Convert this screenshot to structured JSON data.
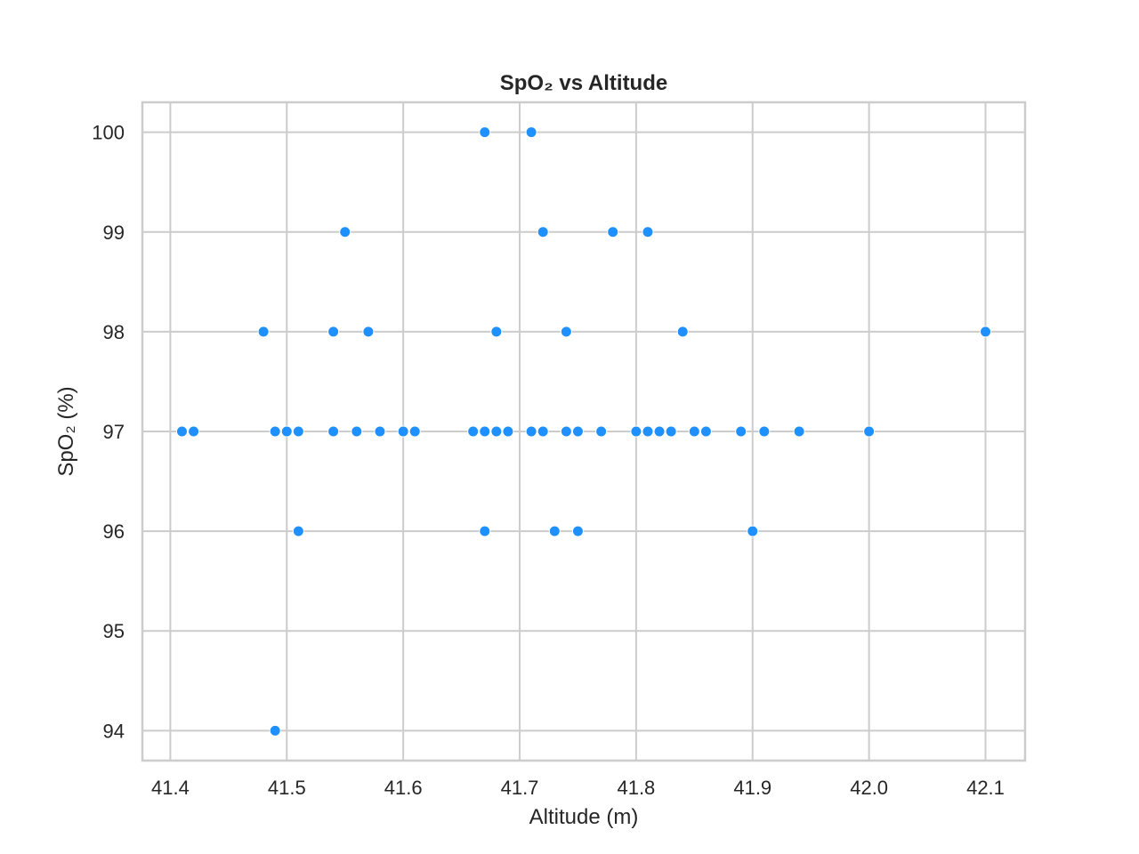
{
  "chart_data": {
    "type": "scatter",
    "title": "SpO₂ vs Altitude",
    "xlabel": "Altitude (m)",
    "ylabel": "SpO₂ (%)",
    "xlim": [
      41.376,
      42.134
    ],
    "ylim": [
      93.7,
      100.3
    ],
    "xticks": [
      41.4,
      41.5,
      41.6,
      41.7,
      41.8,
      41.9,
      42.0,
      42.1
    ],
    "xtick_labels": [
      "41.4",
      "41.5",
      "41.6",
      "41.7",
      "41.8",
      "41.9",
      "42.0",
      "42.1"
    ],
    "yticks": [
      94,
      95,
      96,
      97,
      98,
      99,
      100
    ],
    "ytick_labels": [
      "94",
      "95",
      "96",
      "97",
      "98",
      "99",
      "100"
    ],
    "grid": true,
    "marker_color": "#1e90ff",
    "points": [
      {
        "x": 41.67,
        "y": 100
      },
      {
        "x": 41.71,
        "y": 100
      },
      {
        "x": 41.55,
        "y": 99
      },
      {
        "x": 41.72,
        "y": 99
      },
      {
        "x": 41.78,
        "y": 99
      },
      {
        "x": 41.81,
        "y": 99
      },
      {
        "x": 41.48,
        "y": 98
      },
      {
        "x": 41.54,
        "y": 98
      },
      {
        "x": 41.57,
        "y": 98
      },
      {
        "x": 41.68,
        "y": 98
      },
      {
        "x": 41.74,
        "y": 98
      },
      {
        "x": 41.84,
        "y": 98
      },
      {
        "x": 42.1,
        "y": 98
      },
      {
        "x": 41.41,
        "y": 97
      },
      {
        "x": 41.42,
        "y": 97
      },
      {
        "x": 41.49,
        "y": 97
      },
      {
        "x": 41.5,
        "y": 97
      },
      {
        "x": 41.51,
        "y": 97
      },
      {
        "x": 41.54,
        "y": 97
      },
      {
        "x": 41.56,
        "y": 97
      },
      {
        "x": 41.58,
        "y": 97
      },
      {
        "x": 41.6,
        "y": 97
      },
      {
        "x": 41.61,
        "y": 97
      },
      {
        "x": 41.66,
        "y": 97
      },
      {
        "x": 41.67,
        "y": 97
      },
      {
        "x": 41.68,
        "y": 97
      },
      {
        "x": 41.69,
        "y": 97
      },
      {
        "x": 41.71,
        "y": 97
      },
      {
        "x": 41.72,
        "y": 97
      },
      {
        "x": 41.74,
        "y": 97
      },
      {
        "x": 41.75,
        "y": 97
      },
      {
        "x": 41.77,
        "y": 97
      },
      {
        "x": 41.8,
        "y": 97
      },
      {
        "x": 41.81,
        "y": 97
      },
      {
        "x": 41.82,
        "y": 97
      },
      {
        "x": 41.83,
        "y": 97
      },
      {
        "x": 41.85,
        "y": 97
      },
      {
        "x": 41.86,
        "y": 97
      },
      {
        "x": 41.89,
        "y": 97
      },
      {
        "x": 41.91,
        "y": 97
      },
      {
        "x": 41.94,
        "y": 97
      },
      {
        "x": 42.0,
        "y": 97
      },
      {
        "x": 41.51,
        "y": 96
      },
      {
        "x": 41.67,
        "y": 96
      },
      {
        "x": 41.73,
        "y": 96
      },
      {
        "x": 41.75,
        "y": 96
      },
      {
        "x": 41.9,
        "y": 96
      },
      {
        "x": 41.49,
        "y": 94
      }
    ]
  }
}
